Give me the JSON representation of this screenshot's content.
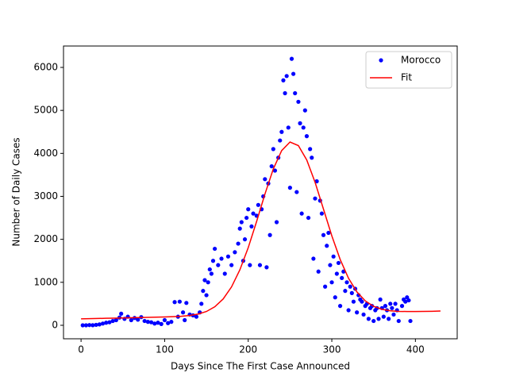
{
  "chart_data": {
    "type": "scatter-fit",
    "xlabel": "Days Since The First Case Announced",
    "ylabel": "Number of Daily Cases",
    "xlim": [
      -21,
      450
    ],
    "ylim": [
      -314,
      6498
    ],
    "xticks": [
      0,
      100,
      200,
      300,
      400
    ],
    "yticks": [
      0,
      1000,
      2000,
      3000,
      4000,
      5000,
      6000
    ],
    "legend": "upper right",
    "series": [
      {
        "name": "Morocco",
        "color": "#0000ff",
        "style": "points",
        "x": [
          2,
          6,
          10,
          14,
          18,
          22,
          26,
          30,
          34,
          38,
          42,
          46,
          48,
          52,
          56,
          60,
          64,
          68,
          72,
          76,
          80,
          84,
          88,
          92,
          96,
          100,
          104,
          108,
          112,
          116,
          118,
          122,
          124,
          126,
          130,
          134,
          138,
          142,
          144,
          146,
          148,
          150,
          152,
          154,
          156,
          158,
          160,
          164,
          168,
          172,
          176,
          180,
          184,
          188,
          190,
          192,
          194,
          196,
          198,
          200,
          202,
          204,
          206,
          210,
          212,
          214,
          216,
          218,
          220,
          222,
          224,
          226,
          228,
          230,
          232,
          234,
          236,
          238,
          240,
          242,
          244,
          246,
          248,
          250,
          252,
          254,
          256,
          258,
          260,
          262,
          264,
          266,
          268,
          270,
          272,
          274,
          276,
          278,
          280,
          282,
          284,
          286,
          288,
          290,
          292,
          294,
          296,
          298,
          300,
          302,
          304,
          306,
          308,
          310,
          312,
          314,
          316,
          318,
          320,
          322,
          324,
          326,
          328,
          330,
          332,
          334,
          336,
          338,
          340,
          342,
          344,
          346,
          348,
          350,
          352,
          354,
          356,
          358,
          360,
          362,
          364,
          366,
          368,
          370,
          372,
          374,
          376,
          378,
          380,
          384,
          386,
          388,
          390,
          392,
          394
        ],
        "values": [
          0,
          0,
          5,
          2,
          10,
          20,
          40,
          60,
          70,
          100,
          120,
          180,
          270,
          150,
          200,
          120,
          170,
          130,
          190,
          100,
          80,
          70,
          40,
          60,
          30,
          120,
          50,
          80,
          540,
          200,
          550,
          300,
          120,
          520,
          250,
          230,
          200,
          300,
          500,
          800,
          1050,
          700,
          1000,
          1300,
          1200,
          1500,
          1780,
          1400,
          1550,
          1200,
          1600,
          1400,
          1700,
          1900,
          2250,
          2400,
          1500,
          2000,
          2500,
          2700,
          1400,
          2300,
          2600,
          2550,
          2800,
          1400,
          2700,
          3000,
          3400,
          1350,
          3300,
          2100,
          3700,
          4100,
          3600,
          2400,
          3900,
          4300,
          4500,
          5700,
          5400,
          5800,
          4600,
          3200,
          6200,
          5850,
          5400,
          3100,
          5200,
          4700,
          2600,
          4600,
          5000,
          4400,
          2500,
          4100,
          3900,
          1550,
          2950,
          3350,
          1250,
          2900,
          2600,
          2100,
          900,
          1850,
          2150,
          1400,
          1000,
          1600,
          650,
          1200,
          1450,
          450,
          1100,
          1250,
          800,
          1000,
          350,
          900,
          750,
          550,
          850,
          300,
          700,
          600,
          550,
          250,
          450,
          500,
          150,
          400,
          450,
          100,
          350,
          400,
          150,
          600,
          400,
          200,
          450,
          350,
          150,
          500,
          400,
          250,
          500,
          350,
          100,
          450,
          600,
          550,
          650,
          580,
          100
        ]
      },
      {
        "name": "Fit",
        "color": "#ff0000",
        "style": "line",
        "x": [
          0,
          10,
          20,
          30,
          40,
          50,
          60,
          70,
          80,
          90,
          100,
          110,
          120,
          130,
          140,
          150,
          160,
          170,
          180,
          190,
          200,
          210,
          220,
          230,
          240,
          250,
          260,
          270,
          280,
          290,
          300,
          310,
          320,
          330,
          340,
          350,
          360,
          370,
          380,
          390,
          400,
          410,
          420,
          430
        ],
        "values": [
          150,
          154,
          158,
          163,
          167,
          171,
          175,
          179,
          184,
          188,
          193,
          200,
          210,
          228,
          261,
          321,
          431,
          612,
          892,
          1290,
          1807,
          2414,
          3054,
          3638,
          4065,
          4264,
          4181,
          3847,
          3325,
          2704,
          2082,
          1531,
          1093,
          777,
          568,
          441,
          372,
          337,
          324,
          320,
          320,
          322,
          326,
          331
        ]
      }
    ]
  }
}
